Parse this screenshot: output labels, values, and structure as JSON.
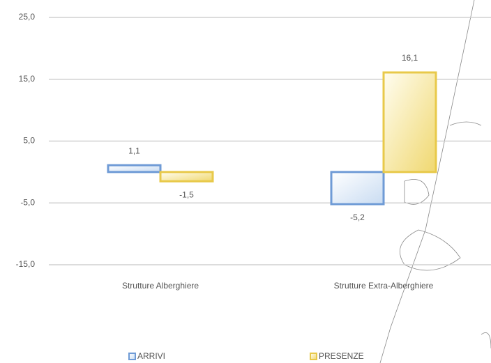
{
  "chart_data": {
    "type": "bar",
    "categories": [
      "Strutture Alberghiere",
      "Strutture Extra-Alberghiere"
    ],
    "series": [
      {
        "name": "ARRIVI",
        "color": "#6f9bd6",
        "values": [
          1.1,
          -5.2
        ],
        "value_labels": [
          "1,1",
          "-5,2"
        ]
      },
      {
        "name": "PRESENZE",
        "color": "#e8c94a",
        "values": [
          -1.5,
          16.1
        ],
        "value_labels": [
          "-1,5",
          "16,1"
        ]
      }
    ],
    "ylim": [
      -15,
      25
    ],
    "yticks": [
      {
        "value": 25,
        "label": "25,0"
      },
      {
        "value": 15,
        "label": "15,0"
      },
      {
        "value": 5,
        "label": "5,0"
      },
      {
        "value": -5,
        "label": "-5,0"
      },
      {
        "value": -15,
        "label": "-15,0"
      }
    ],
    "grid": true
  }
}
